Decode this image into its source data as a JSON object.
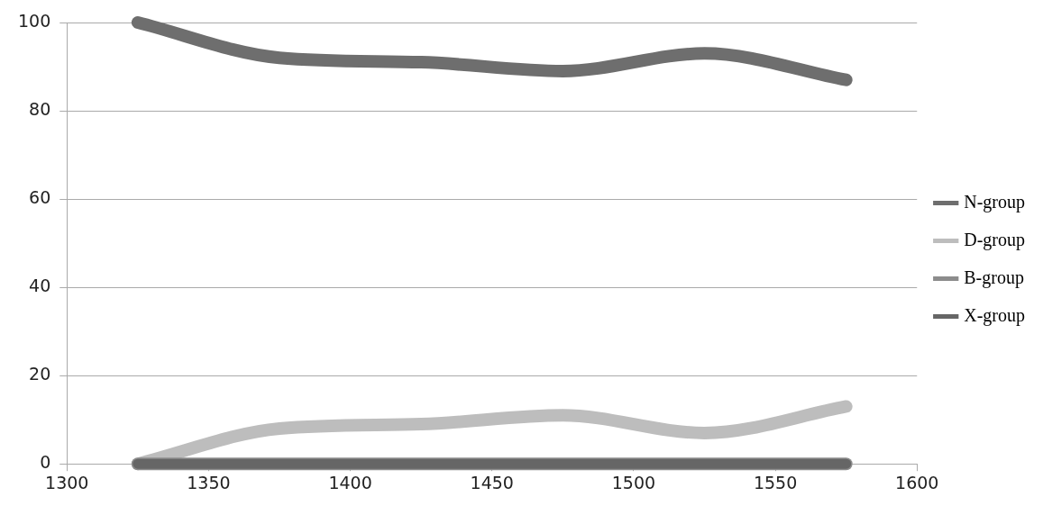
{
  "chart_data": {
    "type": "line",
    "x": [
      1325,
      1375,
      1425,
      1475,
      1525,
      1575
    ],
    "series": [
      {
        "name": "N-group",
        "color": "#6e6e6e",
        "values": [
          100,
          92,
          91,
          89,
          93,
          87
        ]
      },
      {
        "name": "D-group",
        "color": "#bdbdbd",
        "values": [
          0,
          8,
          9,
          11,
          7,
          13
        ]
      },
      {
        "name": "B-group",
        "color": "#8c8c8c",
        "values": [
          0,
          0,
          0,
          0,
          0,
          0
        ]
      },
      {
        "name": "X-group",
        "color": "#666666",
        "values": [
          0,
          0,
          0,
          0,
          0,
          0
        ]
      }
    ],
    "xlim": [
      1300,
      1600
    ],
    "xticks": [
      {
        "value": 1300,
        "label": "1300"
      },
      {
        "value": 1350,
        "label": "1350"
      },
      {
        "value": 1400,
        "label": "1400"
      },
      {
        "value": 1450,
        "label": "1450"
      },
      {
        "value": 1500,
        "label": "1500"
      },
      {
        "value": 1550,
        "label": "1550"
      },
      {
        "value": 1600,
        "label": "1600"
      }
    ],
    "ylim": [
      0,
      100
    ],
    "yticks": [
      0,
      20,
      40,
      60,
      80,
      100
    ],
    "grid": "y",
    "legend": "right",
    "marker": "none",
    "line_style": "solid"
  }
}
